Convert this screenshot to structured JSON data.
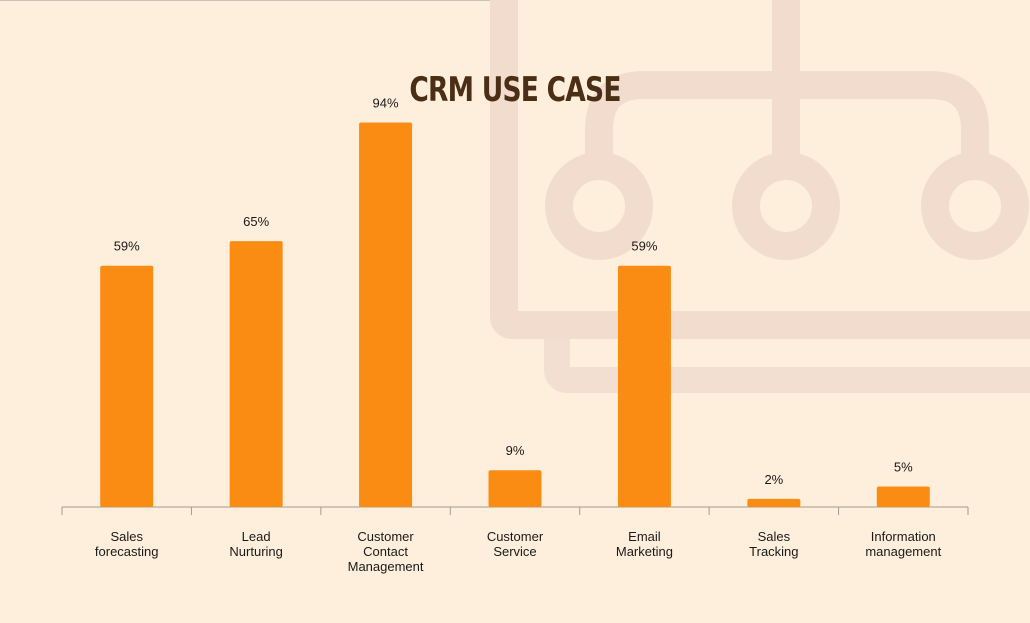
{
  "chart_data": {
    "type": "bar",
    "title": "CRM USE CASE",
    "categories": [
      [
        "Sales",
        "forecasting"
      ],
      [
        "Lead",
        "Nurturing"
      ],
      [
        "Customer",
        "Contact",
        "Management"
      ],
      [
        "Customer",
        "Service"
      ],
      [
        "Email",
        "Marketing"
      ],
      [
        "Sales",
        "Tracking"
      ],
      [
        "Information",
        "management"
      ]
    ],
    "values": [
      59,
      65,
      94,
      9,
      59,
      2,
      5
    ],
    "value_labels": [
      "59%",
      "65%",
      "94%",
      "9%",
      "59%",
      "2%",
      "5%"
    ],
    "ylim": [
      0,
      100
    ],
    "grid": false,
    "legend": "none",
    "bar_color": "#fb8c13",
    "axis_color": "#a39a92",
    "text_color": "#1a1a1a"
  },
  "colors": {
    "background": "#fdefdc",
    "title": "#4a2e16",
    "decoration": "#f2dccd"
  }
}
